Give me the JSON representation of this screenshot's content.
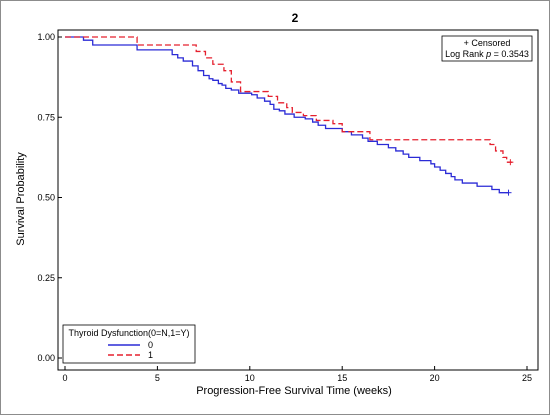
{
  "chart_data": {
    "type": "line",
    "title": "2",
    "xlabel": "Progression-Free Survival Time (weeks)",
    "ylabel": "Survival Probability",
    "xlim": [
      0,
      25
    ],
    "ylim": [
      0,
      1
    ],
    "xticks": [
      0,
      5,
      10,
      15,
      20,
      25
    ],
    "yticks": [
      0,
      0.25,
      0.5,
      0.75,
      1
    ],
    "x_tick_labels": [
      "0",
      "5",
      "10",
      "15",
      "20",
      "25"
    ],
    "y_tick_labels": [
      "0.00",
      "0.25",
      "0.50",
      "0.75",
      "1.00"
    ],
    "grid": false,
    "series": [
      {
        "name": "0",
        "color": "#2b2bd6",
        "dash": "solid",
        "points": [
          [
            0,
            1.0
          ],
          [
            1.0,
            0.99
          ],
          [
            1.5,
            0.975
          ],
          [
            3.9,
            0.96
          ],
          [
            5.8,
            0.945
          ],
          [
            6.1,
            0.935
          ],
          [
            6.4,
            0.925
          ],
          [
            6.9,
            0.91
          ],
          [
            7.2,
            0.895
          ],
          [
            7.5,
            0.88
          ],
          [
            7.8,
            0.87
          ],
          [
            8.0,
            0.865
          ],
          [
            8.3,
            0.855
          ],
          [
            8.5,
            0.85
          ],
          [
            8.7,
            0.84
          ],
          [
            9.0,
            0.835
          ],
          [
            9.4,
            0.825
          ],
          [
            10.1,
            0.82
          ],
          [
            10.4,
            0.81
          ],
          [
            10.8,
            0.8
          ],
          [
            11.1,
            0.79
          ],
          [
            11.3,
            0.775
          ],
          [
            11.6,
            0.77
          ],
          [
            11.9,
            0.76
          ],
          [
            12.4,
            0.75
          ],
          [
            13.0,
            0.745
          ],
          [
            13.4,
            0.735
          ],
          [
            13.7,
            0.725
          ],
          [
            14.1,
            0.715
          ],
          [
            15.0,
            0.705
          ],
          [
            15.5,
            0.695
          ],
          [
            16.1,
            0.685
          ],
          [
            16.4,
            0.675
          ],
          [
            16.9,
            0.665
          ],
          [
            17.5,
            0.655
          ],
          [
            17.9,
            0.645
          ],
          [
            18.3,
            0.635
          ],
          [
            18.6,
            0.625
          ],
          [
            19.2,
            0.615
          ],
          [
            19.8,
            0.605
          ],
          [
            20.0,
            0.595
          ],
          [
            20.3,
            0.585
          ],
          [
            20.6,
            0.575
          ],
          [
            20.9,
            0.565
          ],
          [
            21.1,
            0.555
          ],
          [
            21.5,
            0.545
          ],
          [
            22.3,
            0.535
          ],
          [
            23.1,
            0.525
          ],
          [
            23.5,
            0.515
          ],
          [
            24.0,
            0.515
          ]
        ],
        "censored": [
          [
            24.0,
            0.515
          ]
        ]
      },
      {
        "name": "1",
        "color": "#e5202e",
        "dash": "dashed",
        "points": [
          [
            0,
            1.0
          ],
          [
            3.9,
            0.975
          ],
          [
            7.1,
            0.955
          ],
          [
            7.6,
            0.935
          ],
          [
            8.0,
            0.915
          ],
          [
            8.6,
            0.895
          ],
          [
            9.0,
            0.86
          ],
          [
            9.5,
            0.83
          ],
          [
            11.0,
            0.815
          ],
          [
            11.5,
            0.795
          ],
          [
            12.0,
            0.78
          ],
          [
            12.3,
            0.765
          ],
          [
            12.9,
            0.755
          ],
          [
            13.6,
            0.74
          ],
          [
            14.5,
            0.73
          ],
          [
            15.0,
            0.705
          ],
          [
            16.5,
            0.68
          ],
          [
            17.5,
            0.68
          ],
          [
            23.0,
            0.665
          ],
          [
            23.3,
            0.645
          ],
          [
            23.7,
            0.625
          ],
          [
            23.9,
            0.61
          ],
          [
            24.2,
            0.61
          ]
        ],
        "censored": [
          [
            24.1,
            0.61
          ]
        ]
      }
    ],
    "inset": {
      "line1": "+ Censored",
      "line2_prefix": "Log Rank ",
      "line2_p": "p",
      "line2_suffix": " = 0.3543"
    },
    "legend": {
      "title": "Thyroid Dysfunction(0=N,1=Y)",
      "placement": "bottom-left"
    }
  }
}
